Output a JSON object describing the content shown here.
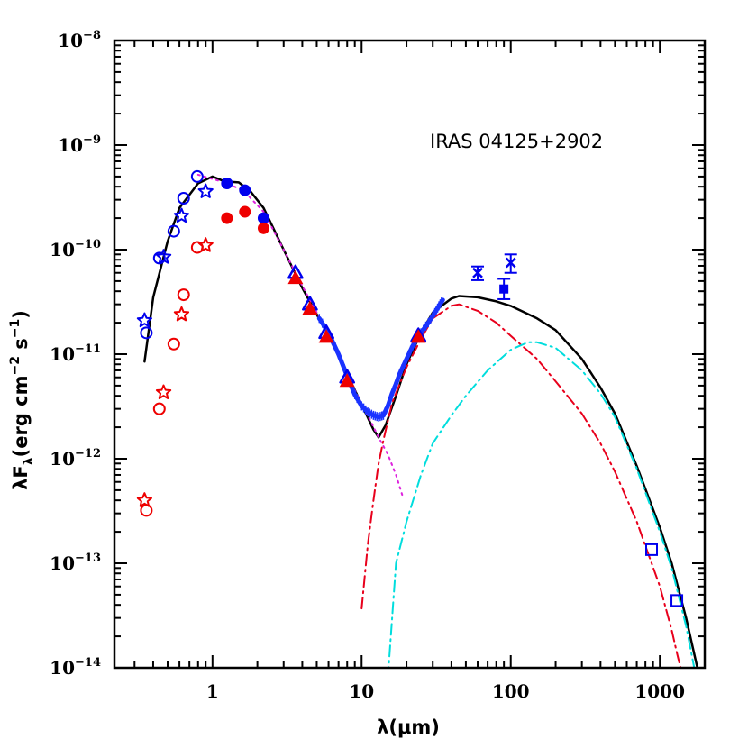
{
  "chart_data": {
    "type": "scatter",
    "title": "",
    "annotation": "IRAS 04125+2902",
    "xlabel": "λ(μm)",
    "ylabel": "λF_λ(erg cm^-2 s^-1)",
    "ylabel_parts": {
      "lead": "λF",
      "sub": "λ",
      "body": "(erg cm",
      "sup1": "−2",
      "mid": " s",
      "sup2": "−1",
      "tail": ")"
    },
    "xscale": "log",
    "yscale": "log",
    "xlim": [
      0.22,
      2000
    ],
    "ylim": [
      1e-14,
      1e-08
    ],
    "x_tick_labels": [
      {
        "value": 1,
        "label": "1"
      },
      {
        "value": 10,
        "label": "10"
      },
      {
        "value": 100,
        "label": "100"
      },
      {
        "value": 1000,
        "label": "1000"
      }
    ],
    "y_tick_labels": [
      {
        "value": 1e-14,
        "base": "10",
        "exp": "−14"
      },
      {
        "value": 1e-13,
        "base": "10",
        "exp": "−13"
      },
      {
        "value": 1e-12,
        "base": "10",
        "exp": "−12"
      },
      {
        "value": 1e-11,
        "base": "10",
        "exp": "−11"
      },
      {
        "value": 1e-10,
        "base": "10",
        "exp": "−10"
      },
      {
        "value": 1e-09,
        "base": "10",
        "exp": "−9"
      },
      {
        "value": 1e-08,
        "base": "10",
        "exp": "−8"
      }
    ],
    "grid": false,
    "colors": {
      "model_total": "#000000",
      "photosphere": "#dd22dd",
      "disk": "#e8001c",
      "envelope": "#00dddd",
      "observed": "#0000ee",
      "dereddened": "#ee0000",
      "spectrum": "#1a33ff"
    },
    "lines": [
      {
        "id": "model_total",
        "style": "solid",
        "width": 2.5,
        "points": [
          [
            0.35,
            8.5e-12
          ],
          [
            0.4,
            3.5e-11
          ],
          [
            0.5,
            1.2e-10
          ],
          [
            0.6,
            2.5e-10
          ],
          [
            0.8,
            4.3e-10
          ],
          [
            1.0,
            5e-10
          ],
          [
            1.2,
            4.5e-10
          ],
          [
            1.5,
            4.4e-10
          ],
          [
            1.8,
            3.6e-10
          ],
          [
            2.2,
            2.5e-10
          ],
          [
            3.0,
            1e-10
          ],
          [
            4.0,
            4.3e-11
          ],
          [
            5.0,
            2.4e-11
          ],
          [
            6.0,
            1.5e-11
          ],
          [
            8.0,
            6.5e-12
          ],
          [
            10.0,
            3.3e-12
          ],
          [
            12.0,
            1.9e-12
          ],
          [
            13.0,
            1.6e-12
          ],
          [
            14.5,
            2.1e-12
          ],
          [
            17.0,
            4e-12
          ],
          [
            20.0,
            8e-12
          ],
          [
            25.0,
            1.6e-11
          ],
          [
            30.0,
            2.5e-11
          ],
          [
            40.0,
            3.4e-11
          ],
          [
            45.0,
            3.6e-11
          ],
          [
            60.0,
            3.5e-11
          ],
          [
            80.0,
            3.2e-11
          ],
          [
            100.0,
            2.9e-11
          ],
          [
            150.0,
            2.2e-11
          ],
          [
            200.0,
            1.7e-11
          ],
          [
            300.0,
            9e-12
          ],
          [
            400.0,
            4.8e-12
          ],
          [
            500.0,
            2.7e-12
          ],
          [
            700.0,
            8.5e-13
          ],
          [
            1000.0,
            2.2e-13
          ],
          [
            1200.0,
            1e-13
          ],
          [
            1500.0,
            3e-14
          ],
          [
            1800.0,
            9.5e-15
          ]
        ]
      },
      {
        "id": "photosphere",
        "style": "dotted",
        "width": 2,
        "points": [
          [
            0.8,
            5.2e-10
          ],
          [
            1.2,
            4.4e-10
          ],
          [
            1.6,
            3.7e-10
          ],
          [
            2.2,
            2.3e-10
          ],
          [
            3.0,
            1e-10
          ],
          [
            4.0,
            4.5e-11
          ],
          [
            5.0,
            2.5e-11
          ],
          [
            7.0,
            9.5e-12
          ],
          [
            9.0,
            4.5e-12
          ],
          [
            11.0,
            2.6e-12
          ],
          [
            13.0,
            1.6e-12
          ],
          [
            15.0,
            1.1e-12
          ],
          [
            17.0,
            7e-13
          ],
          [
            19.0,
            4.2e-13
          ]
        ]
      },
      {
        "id": "disk",
        "style": "dashdot",
        "width": 2,
        "points": [
          [
            10.0,
            3.7e-14
          ],
          [
            11.0,
            1.5e-13
          ],
          [
            12.0,
            4e-13
          ],
          [
            13.0,
            9e-13
          ],
          [
            14.0,
            1.5e-12
          ],
          [
            16.0,
            3.4e-12
          ],
          [
            20.0,
            7.5e-12
          ],
          [
            25.0,
            1.4e-11
          ],
          [
            30.0,
            2.2e-11
          ],
          [
            40.0,
            2.9e-11
          ],
          [
            45.0,
            3e-11
          ],
          [
            60.0,
            2.6e-11
          ],
          [
            80.0,
            2e-11
          ],
          [
            100.0,
            1.5e-11
          ],
          [
            150.0,
            9e-12
          ],
          [
            200.0,
            5.5e-12
          ],
          [
            300.0,
            2.7e-12
          ],
          [
            400.0,
            1.4e-12
          ],
          [
            500.0,
            7.5e-13
          ],
          [
            700.0,
            2.5e-13
          ],
          [
            1000.0,
            6e-14
          ],
          [
            1200.0,
            2.3e-14
          ],
          [
            1300.0,
            1.4e-14
          ],
          [
            1400.0,
            9e-15
          ]
        ]
      },
      {
        "id": "envelope",
        "style": "dashdot",
        "width": 2,
        "points": [
          [
            15.0,
            8e-15
          ],
          [
            17.0,
            1e-13
          ],
          [
            20.0,
            2.5e-13
          ],
          [
            25.0,
            7e-13
          ],
          [
            30.0,
            1.4e-12
          ],
          [
            40.0,
            2.6e-12
          ],
          [
            50.0,
            4e-12
          ],
          [
            70.0,
            7e-12
          ],
          [
            100.0,
            1.1e-11
          ],
          [
            130.0,
            1.3e-11
          ],
          [
            150.0,
            1.3e-11
          ],
          [
            200.0,
            1.15e-11
          ],
          [
            300.0,
            7e-12
          ],
          [
            400.0,
            4.2e-12
          ],
          [
            500.0,
            2.5e-12
          ],
          [
            700.0,
            8e-13
          ],
          [
            1000.0,
            2e-13
          ],
          [
            1200.0,
            9e-14
          ],
          [
            1500.0,
            2.5e-14
          ],
          [
            1700.0,
            1e-14
          ]
        ]
      }
    ],
    "spectrum": {
      "id": "irs",
      "points": [
        [
          5.2,
          2.2e-11
        ],
        [
          6.0,
          1.6e-11
        ],
        [
          7.0,
          1e-11
        ],
        [
          8.0,
          6.2e-12
        ],
        [
          9.0,
          4.1e-12
        ],
        [
          10.0,
          3.2e-12
        ],
        [
          11.0,
          2.8e-12
        ],
        [
          12.0,
          2.6e-12
        ],
        [
          13.0,
          2.5e-12
        ],
        [
          14.0,
          2.6e-12
        ],
        [
          15.0,
          3.2e-12
        ],
        [
          16.0,
          4.2e-12
        ],
        [
          17.0,
          5.2e-12
        ],
        [
          18.0,
          6.5e-12
        ],
        [
          20.0,
          9e-12
        ],
        [
          22.0,
          1.2e-11
        ],
        [
          25.0,
          1.6e-11
        ],
        [
          28.0,
          2e-11
        ],
        [
          31.0,
          2.5e-11
        ],
        [
          33.0,
          2.9e-11
        ],
        [
          35.0,
          3.3e-11
        ]
      ]
    },
    "series": [
      {
        "id": "observed_open_circles",
        "marker": "open-circle",
        "color": "observed",
        "points": [
          [
            0.36,
            1.6e-11
          ],
          [
            0.44,
            8.3e-11
          ],
          [
            0.55,
            1.5e-10
          ],
          [
            0.64,
            3.1e-10
          ],
          [
            0.79,
            5e-10
          ]
        ]
      },
      {
        "id": "observed_open_stars",
        "marker": "open-star",
        "color": "observed",
        "points": [
          [
            0.35,
            2.1e-11
          ],
          [
            0.47,
            8.5e-11
          ],
          [
            0.62,
            2.1e-10
          ],
          [
            0.9,
            3.6e-10
          ]
        ]
      },
      {
        "id": "observed_filled_circles",
        "marker": "filled-circle",
        "color": "observed",
        "points": [
          [
            1.25,
            4.3e-10
          ],
          [
            1.65,
            3.7e-10
          ],
          [
            2.2,
            2e-10
          ]
        ]
      },
      {
        "id": "observed_open_triangles",
        "marker": "open-triangle",
        "color": "observed",
        "points": [
          [
            3.6,
            6e-11
          ],
          [
            4.5,
            3e-11
          ],
          [
            5.8,
            1.6e-11
          ],
          [
            8.0,
            6e-12
          ],
          [
            24.0,
            1.5e-11
          ]
        ]
      },
      {
        "id": "observed_crosses",
        "marker": "cross",
        "color": "observed",
        "points": [
          [
            60.0,
            6e-11
          ],
          [
            100.0,
            7.5e-11
          ]
        ],
        "errors": [
          [
            0.85,
            1.15
          ],
          [
            0.8,
            1.2
          ]
        ]
      },
      {
        "id": "observed_filled_square",
        "marker": "filled-square",
        "color": "observed",
        "points": [
          [
            90.0,
            4.2e-11
          ]
        ],
        "errors": [
          [
            0.8,
            1.25
          ]
        ]
      },
      {
        "id": "observed_open_squares",
        "marker": "open-square",
        "color": "observed",
        "points": [
          [
            880.0,
            1.35e-13
          ],
          [
            1300.0,
            4.4e-14
          ]
        ]
      },
      {
        "id": "dereddened_open_circles",
        "marker": "open-circle",
        "color": "dereddened",
        "points": [
          [
            0.36,
            3.2e-13
          ],
          [
            0.44,
            3e-12
          ],
          [
            0.55,
            1.25e-11
          ],
          [
            0.64,
            3.7e-11
          ],
          [
            0.79,
            1.05e-10
          ]
        ]
      },
      {
        "id": "dereddened_open_stars",
        "marker": "open-star",
        "color": "dereddened",
        "points": [
          [
            0.35,
            4e-13
          ],
          [
            0.47,
            4.3e-12
          ],
          [
            0.62,
            2.4e-11
          ],
          [
            0.9,
            1.1e-10
          ]
        ]
      },
      {
        "id": "dereddened_filled_circles",
        "marker": "filled-circle",
        "color": "dereddened",
        "points": [
          [
            1.25,
            2e-10
          ],
          [
            1.65,
            2.3e-10
          ],
          [
            2.2,
            1.6e-10
          ]
        ]
      },
      {
        "id": "dereddened_filled_triangles",
        "marker": "filled-triangle",
        "color": "dereddened",
        "points": [
          [
            3.6,
            5.3e-11
          ],
          [
            4.5,
            2.7e-11
          ],
          [
            5.8,
            1.45e-11
          ],
          [
            8.0,
            5.5e-12
          ],
          [
            24.0,
            1.45e-11
          ]
        ]
      }
    ]
  }
}
